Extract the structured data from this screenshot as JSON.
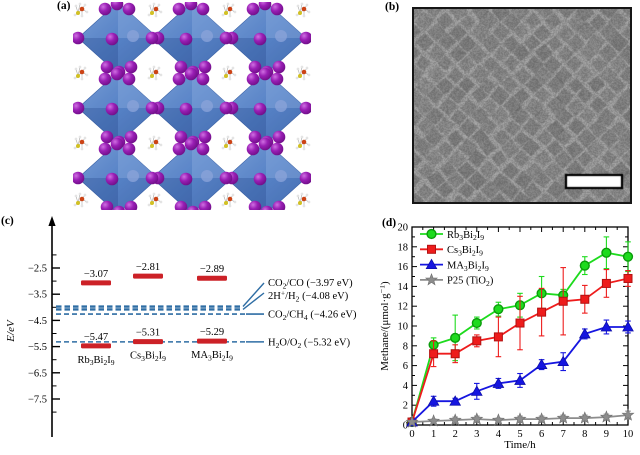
{
  "figure": {
    "background": "#ffffff",
    "panel_labels": {
      "a": "(a)",
      "b": "(b)",
      "c": "(c)",
      "d": "(d)"
    }
  },
  "panel_a": {
    "colors": {
      "octahedron_blue": "#4a79c2",
      "octahedron_light": "#8fb0e0",
      "octahedron_dark": "#24488c",
      "octahedron_edge": "#2c56a0",
      "iodine_purple": "#9a1fb5",
      "iodine_highlight": "#cf6fe2",
      "iodine_shadow": "#6d0d85",
      "bismuth_blue": "#8aa2d8",
      "carbon_orange": "#cc4416",
      "nitrogen_yellow": "#d2c122",
      "hydrogen_white": "#f2f2f2",
      "stick_gray": "#aaaaaa"
    }
  },
  "panel_b": {
    "colors": {
      "background_gray": "#989898",
      "crystal_dark": "#404040",
      "scale_bar_fill": "#ffffff",
      "scale_bar_border": "#000000",
      "frame": "#161616"
    }
  },
  "chart_data": [
    {
      "type": "energy-levels",
      "panel": "c",
      "ylabel": "E/eV",
      "yticks": [
        -2.5,
        -3.5,
        -4.5,
        -5.5,
        -6.5,
        -7.5
      ],
      "ylim": [
        -8.3,
        -1.9
      ],
      "level_color": "#cc2127",
      "line_color": "#2e6da4",
      "materials": [
        {
          "label": "Rb_{3}Bi_{2}I_{9}",
          "cb": -3.07,
          "vb": -5.47
        },
        {
          "label": "Cs_{3}Bi_{2}I_{9}",
          "cb": -2.81,
          "vb": -5.31
        },
        {
          "label": "MA_{3}Bi_{2}I_{9}",
          "cb": -2.89,
          "vb": -5.29
        }
      ],
      "redox_levels": [
        {
          "label": "CO_{2}/CO (−3.97 eV)",
          "value": -3.97,
          "thick": true
        },
        {
          "label": "2H^{+}/H_{2} (−4.08 eV)",
          "value": -4.08,
          "thick": true
        },
        {
          "label": "CO_{2}/CH_{4} (−4.26 eV)",
          "value": -4.26,
          "thick": false
        },
        {
          "label": "H_{2}O/O_{2} (−5.32 eV)",
          "value": -5.32,
          "thick": false
        }
      ]
    },
    {
      "type": "line",
      "panel": "d",
      "xlabel": "Time/h",
      "ylabel": "Methane/(μmol·g^{−1})",
      "xlim": [
        0,
        10
      ],
      "ylim": [
        0,
        20
      ],
      "xtick_step": 1,
      "ytick_step": 2,
      "grid": false,
      "legend_position": "top-left",
      "x": [
        0,
        1,
        2,
        3,
        4,
        5,
        6,
        7,
        8,
        9,
        10
      ],
      "series": [
        {
          "name": "Rb_{3}Bi_{2}I_{9}",
          "marker": "circle",
          "color": "#1ddb1d",
          "edge": "#0b9b0b",
          "values": [
            0.3,
            8.1,
            8.8,
            10.3,
            11.7,
            12.1,
            13.3,
            13.1,
            16.1,
            17.4,
            17.0
          ],
          "errors": [
            0,
            0.7,
            2.3,
            0.6,
            0.7,
            1.2,
            1.7,
            0.6,
            0.9,
            1.6,
            1.5
          ]
        },
        {
          "name": "Cs_{3}Bi_{2}I_{9}",
          "marker": "square",
          "color": "#ee1c1c",
          "edge": "#b21212",
          "values": [
            0.3,
            7.2,
            7.2,
            8.5,
            8.9,
            10.3,
            11.4,
            12.5,
            12.7,
            14.3,
            14.8
          ],
          "errors": [
            0,
            1.3,
            0.9,
            0.6,
            2.0,
            2.7,
            2.4,
            3.4,
            1.4,
            1.4,
            0.8
          ]
        },
        {
          "name": "MA_{3}Bi_{2}I_{9}",
          "marker": "triangle",
          "color": "#1616e0",
          "edge": "#0d0da8",
          "values": [
            0.3,
            2.4,
            2.4,
            3.4,
            4.2,
            4.5,
            6.1,
            6.4,
            9.2,
            9.9,
            9.9
          ],
          "errors": [
            0,
            0.5,
            0.3,
            0.8,
            0.5,
            0.7,
            0.5,
            0.9,
            0.5,
            0.7,
            0.6
          ]
        },
        {
          "name": "P25 (TiO_{2})",
          "marker": "star",
          "color": "#8c8c8c",
          "edge": "#6e6e6e",
          "values": [
            0.3,
            0.4,
            0.5,
            0.6,
            0.5,
            0.6,
            0.6,
            0.7,
            0.7,
            0.8,
            1.0
          ],
          "errors": [
            0,
            0.2,
            0.3,
            0.3,
            0.2,
            0.3,
            0.3,
            0.3,
            0.3,
            0.3,
            0.4
          ]
        }
      ]
    }
  ]
}
